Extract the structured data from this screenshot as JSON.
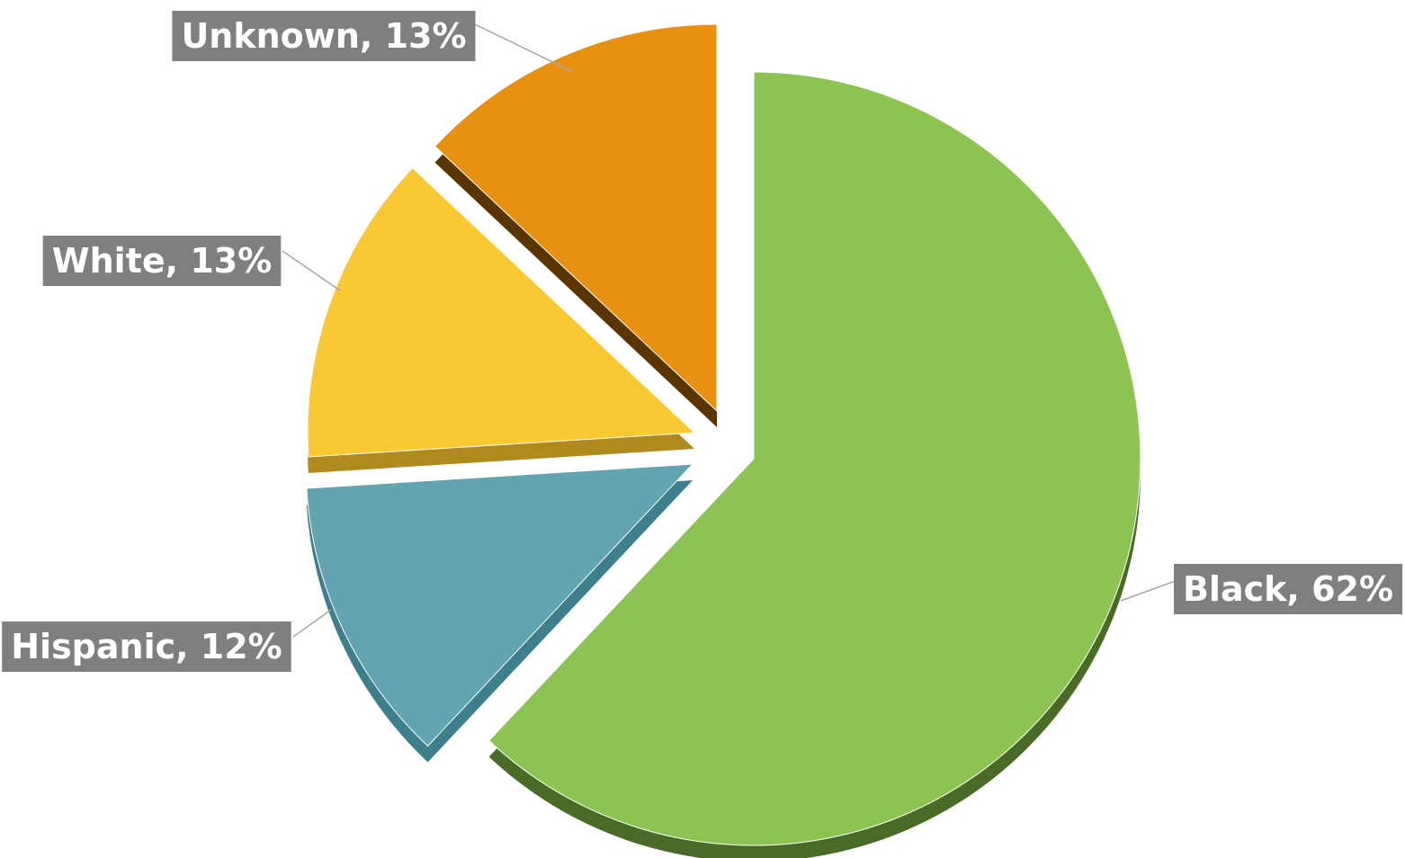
{
  "chart_data": {
    "type": "pie",
    "style": "3d-exploded",
    "title": "",
    "legend": "none",
    "slices": [
      {
        "name": "Black",
        "value": 62,
        "label": "Black, 62%",
        "color": "#8DC353",
        "side_color": "#4A6A28"
      },
      {
        "name": "Hispanic",
        "value": 12,
        "label": "Hispanic, 12%",
        "color": "#62A4AF",
        "side_color": "#3F7F8C"
      },
      {
        "name": "White",
        "value": 13,
        "label": "White, 13%",
        "color": "#FAC833",
        "side_color": "#B08A1E"
      },
      {
        "name": "Unknown",
        "value": 13,
        "label": "Unknown, 13%",
        "color": "#E8900F",
        "side_color": "#5A3500"
      }
    ],
    "label_box_color": "#7F7F7F"
  }
}
